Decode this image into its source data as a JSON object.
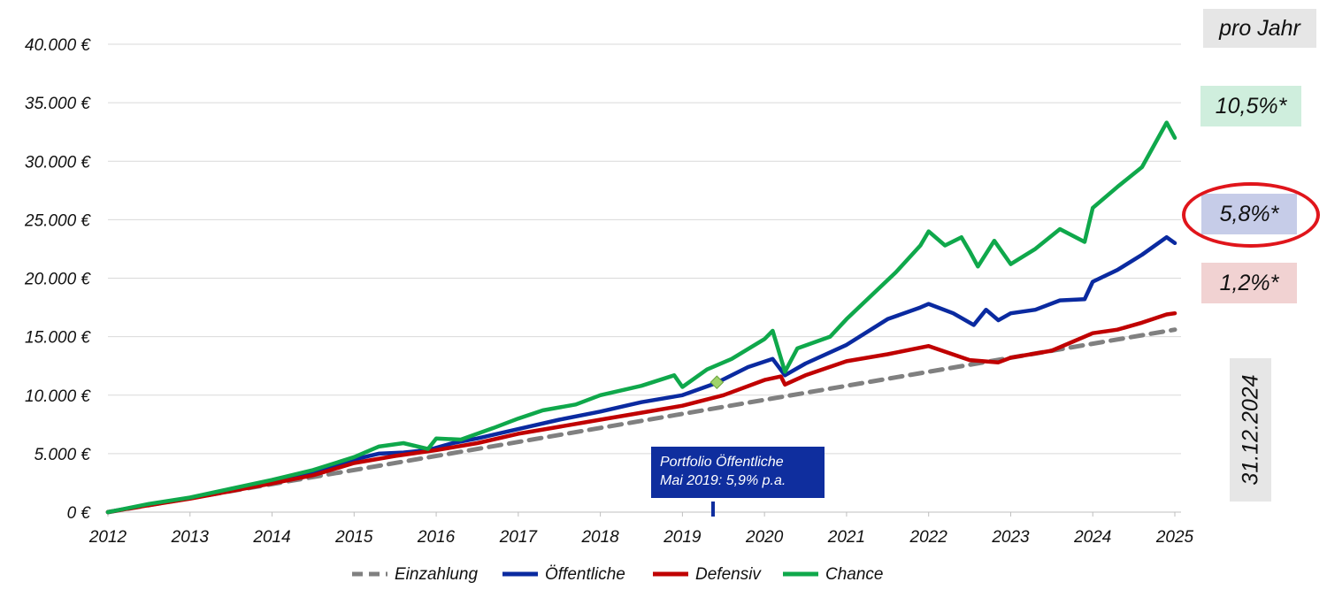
{
  "chart_data": {
    "type": "line",
    "title": "",
    "xlabel": "",
    "ylabel": "",
    "xlim": [
      2012,
      2025.1
    ],
    "ylim": [
      0,
      40000
    ],
    "x_ticks": [
      "2012",
      "2013",
      "2014",
      "2015",
      "2016",
      "2017",
      "2018",
      "2019",
      "2020",
      "2021",
      "2022",
      "2023",
      "2024",
      "2025"
    ],
    "y_ticks": [
      {
        "value": 0,
        "label": "0 €"
      },
      {
        "value": 5000,
        "label": "5.000 €"
      },
      {
        "value": 10000,
        "label": "10.000 €"
      },
      {
        "value": 15000,
        "label": "15.000 €"
      },
      {
        "value": 20000,
        "label": "20.000 €"
      },
      {
        "value": 25000,
        "label": "25.000 €"
      },
      {
        "value": 30000,
        "label": "30.000 €"
      },
      {
        "value": 35000,
        "label": "35.000 €"
      },
      {
        "value": 40000,
        "label": "40.000 €"
      }
    ],
    "legend_position": "bottom",
    "series": [
      {
        "name": "Einzahlung",
        "color": "#808080",
        "dashed": true,
        "x": [
          2012,
          2025
        ],
        "y": [
          0,
          15600
        ]
      },
      {
        "name": "Öffentliche",
        "color": "#0a2aa0",
        "dashed": false,
        "x": [
          2012,
          2012.5,
          2013,
          2013.5,
          2014,
          2014.5,
          2015,
          2015.3,
          2015.6,
          2015.9,
          2016.2,
          2016.5,
          2017,
          2017.5,
          2018,
          2018.5,
          2019,
          2019.4,
          2019.8,
          2020.1,
          2020.25,
          2020.5,
          2021,
          2021.5,
          2021.9,
          2022,
          2022.3,
          2022.55,
          2022.7,
          2022.85,
          2023,
          2023.3,
          2023.6,
          2023.9,
          2024,
          2024.3,
          2024.6,
          2024.9,
          2025
        ],
        "y": [
          0,
          650,
          1200,
          1900,
          2600,
          3300,
          4500,
          5000,
          5100,
          5300,
          5900,
          6300,
          7100,
          7900,
          8600,
          9400,
          10000,
          11000,
          12400,
          13100,
          11700,
          12700,
          14300,
          16500,
          17500,
          17800,
          17000,
          16000,
          17300,
          16400,
          17000,
          17300,
          18100,
          18200,
          19700,
          20700,
          22000,
          23500,
          23000
        ]
      },
      {
        "name": "Defensiv",
        "color": "#c00000",
        "dashed": false,
        "x": [
          2012,
          2012.5,
          2013,
          2013.5,
          2014,
          2014.5,
          2015,
          2015.5,
          2016,
          2016.5,
          2017,
          2017.5,
          2018,
          2018.5,
          2019,
          2019.5,
          2020,
          2020.2,
          2020.25,
          2020.5,
          2021,
          2021.5,
          2022,
          2022.5,
          2022.85,
          2023,
          2023.5,
          2024,
          2024.3,
          2024.6,
          2024.9,
          2025
        ],
        "y": [
          0,
          600,
          1150,
          1800,
          2450,
          3150,
          4200,
          4800,
          5300,
          5900,
          6700,
          7300,
          7900,
          8500,
          9100,
          10000,
          11300,
          11600,
          10900,
          11700,
          12900,
          13500,
          14200,
          13000,
          12800,
          13200,
          13800,
          15300,
          15600,
          16200,
          16900,
          17000
        ]
      },
      {
        "name": "Chance",
        "color": "#0fa84b",
        "dashed": false,
        "x": [
          2012,
          2012.5,
          2013,
          2013.5,
          2014,
          2014.5,
          2015,
          2015.3,
          2015.6,
          2015.9,
          2016,
          2016.3,
          2016.7,
          2017,
          2017.3,
          2017.7,
          2018,
          2018.5,
          2018.9,
          2019,
          2019.3,
          2019.6,
          2020,
          2020.1,
          2020.25,
          2020.4,
          2020.8,
          2021,
          2021.3,
          2021.6,
          2021.9,
          2022,
          2022.2,
          2022.4,
          2022.5,
          2022.6,
          2022.8,
          2023,
          2023.3,
          2023.6,
          2023.9,
          2024,
          2024.3,
          2024.6,
          2024.9,
          2025
        ],
        "y": [
          0,
          700,
          1250,
          2000,
          2750,
          3600,
          4700,
          5600,
          5900,
          5400,
          6300,
          6200,
          7200,
          8000,
          8700,
          9200,
          10000,
          10800,
          11700,
          10700,
          12200,
          13100,
          14800,
          15500,
          12000,
          14000,
          15000,
          16500,
          18500,
          20500,
          22800,
          24000,
          22800,
          23500,
          22300,
          21000,
          23200,
          21200,
          22500,
          24200,
          23100,
          26000,
          27800,
          29500,
          33300,
          32000
        ]
      }
    ],
    "markers": [
      {
        "name": "Mai 2019 Portfolio",
        "x": 2019.42,
        "y": 11100,
        "color": "#9fd36a"
      }
    ]
  },
  "annotations": {
    "per_year_label": "pro Jahr",
    "chance_rate": "10,5%*",
    "oeffentliche_rate": "5,8%*",
    "defensiv_rate": "1,2%*",
    "date_label": "31.12.2024",
    "callout_line1": "Portfolio Öffentliche",
    "callout_line2": "Mai 2019: 5,9% p.a."
  },
  "colors": {
    "grid": "#d9d9d9",
    "highlight": "#e0151b",
    "callout_bg": "#0f2e9e"
  }
}
